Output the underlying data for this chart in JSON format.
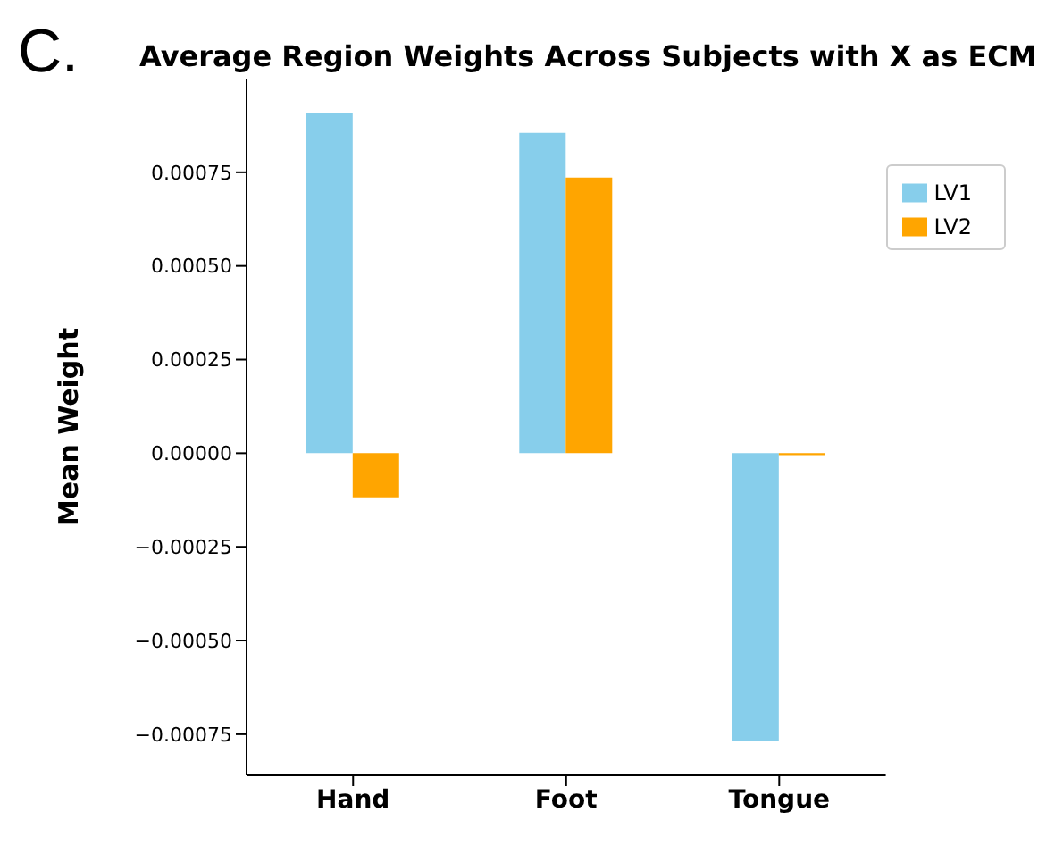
{
  "chart_data": {
    "type": "bar",
    "title": "Average Region Weights Across Subjects with X as ECM",
    "ylabel": "Mean Weight",
    "annotations": [
      "C."
    ],
    "categories": [
      "Hand",
      "Foot",
      "Tongue"
    ],
    "series": [
      {
        "name": "LV1",
        "color": "#87ceeb",
        "values": [
          0.000909,
          0.000855,
          -0.000768
        ]
      },
      {
        "name": "LV2",
        "color": "#ffa500",
        "values": [
          -0.000118,
          0.000736,
          -5e-06
        ]
      }
    ],
    "ylim": [
      -0.00086,
      0.001
    ],
    "yticks": [
      {
        "value": -0.00075,
        "label": "−0.00075"
      },
      {
        "value": -0.0005,
        "label": "−0.00050"
      },
      {
        "value": -0.00025,
        "label": "−0.00025"
      },
      {
        "value": 0,
        "label": "0.00000"
      },
      {
        "value": 0.00025,
        "label": "0.00025"
      },
      {
        "value": 0.0005,
        "label": "0.00050"
      },
      {
        "value": 0.00075,
        "label": "0.00075"
      }
    ],
    "legend": "top right",
    "grid": false
  }
}
